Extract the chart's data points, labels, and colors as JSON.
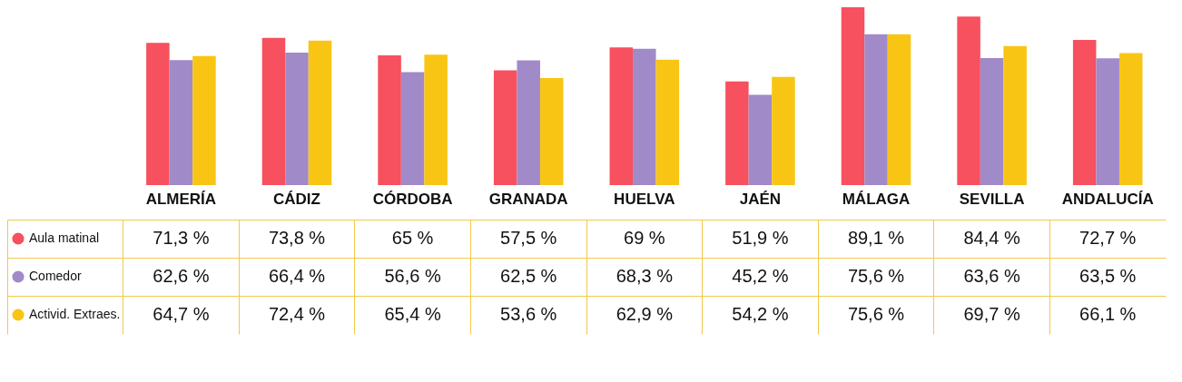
{
  "chart_data": {
    "type": "bar",
    "categories": [
      "ALMERÍA",
      "CÁDIZ",
      "CÓRDOBA",
      "GRANADA",
      "HUELVA",
      "JAÉN",
      "MÁLAGA",
      "SEVILLA",
      "ANDALUCÍA"
    ],
    "series": [
      {
        "name": "Aula matinal",
        "color": "#f7505e",
        "values": [
          71.3,
          73.8,
          65,
          57.5,
          69,
          51.9,
          89.1,
          84.4,
          72.7
        ],
        "value_labels": [
          "71,3 %",
          "73,8 %",
          "65 %",
          "57,5 %",
          "69 %",
          "51,9 %",
          "89,1 %",
          "84,4 %",
          "72,7 %"
        ]
      },
      {
        "name": "Comedor",
        "color": "#a08ac8",
        "values": [
          62.6,
          66.4,
          56.6,
          62.5,
          68.3,
          45.2,
          75.6,
          63.6,
          63.5
        ],
        "value_labels": [
          "62,6 %",
          "66,4 %",
          "56,6 %",
          "62,5 %",
          "68,3 %",
          "45,2 %",
          "75,6 %",
          "63,6 %",
          "63,5 %"
        ]
      },
      {
        "name": "Activid. Extraes.",
        "color": "#f9c515",
        "values": [
          64.7,
          72.4,
          65.4,
          53.6,
          62.9,
          54.2,
          75.6,
          69.7,
          66.1
        ],
        "value_labels": [
          "64,7 %",
          "72,4 %",
          "65,4 %",
          "53,6 %",
          "62,9 %",
          "54,2 %",
          "75,6 %",
          "69,7 %",
          "66,1 %"
        ]
      }
    ],
    "legend": "bottom left"
  }
}
